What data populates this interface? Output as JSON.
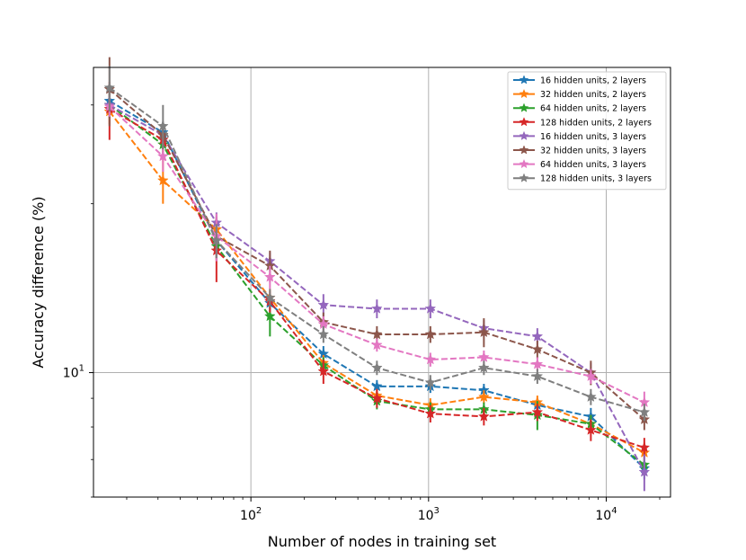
{
  "chart_data": {
    "type": "line",
    "title": "",
    "xlabel": "Number of nodes in training set",
    "ylabel": "Accuracy difference (%)",
    "xscale": "log",
    "yscale": "log",
    "xlim": [
      13,
      23000
    ],
    "ylim": [
      6.0,
      35
    ],
    "grid": true,
    "x_major_ticks": [
      {
        "value": 100,
        "base": "10",
        "exp": "2"
      },
      {
        "value": 1000,
        "base": "10",
        "exp": "3"
      },
      {
        "value": 10000,
        "base": "10",
        "exp": "4"
      }
    ],
    "y_major_ticks": [
      {
        "value": 10,
        "base": "10",
        "exp": "1"
      }
    ],
    "legend_location": "top-right",
    "x": [
      16,
      32,
      64,
      128,
      256,
      512,
      1024,
      2048,
      4096,
      8192,
      16384
    ],
    "series": [
      {
        "name": "16 hidden units, 2 layers",
        "color": "#1f77b4",
        "values": [
          30.5,
          26.8,
          17.2,
          13.3,
          10.8,
          9.45,
          9.45,
          9.3,
          8.75,
          8.35,
          6.75
        ],
        "err": [
          1.2,
          1.2,
          0.9,
          0.5,
          0.35,
          0.25,
          0.25,
          0.25,
          0.25,
          0.3,
          0.3
        ]
      },
      {
        "name": "32 hidden units, 2 layers",
        "color": "#ff7f0e",
        "values": [
          29.2,
          22.0,
          18.0,
          13.6,
          10.4,
          9.1,
          8.75,
          9.05,
          8.85,
          8.1,
          7.2
        ],
        "err": [
          1.5,
          2.0,
          0.9,
          0.5,
          0.35,
          0.25,
          0.25,
          0.25,
          0.25,
          0.3,
          0.3
        ]
      },
      {
        "name": "64 hidden units, 2 layers",
        "color": "#2ca02c",
        "values": [
          30.0,
          25.5,
          16.8,
          12.6,
          10.3,
          8.9,
          8.6,
          8.6,
          8.4,
          8.1,
          6.85
        ],
        "err": [
          1.5,
          1.5,
          0.9,
          1.0,
          0.35,
          0.3,
          0.25,
          0.25,
          0.5,
          0.3,
          0.3
        ]
      },
      {
        "name": "128 hidden units, 2 layers",
        "color": "#d62728",
        "values": [
          29.5,
          26.0,
          16.5,
          13.4,
          10.05,
          9.0,
          8.45,
          8.35,
          8.5,
          7.9,
          7.35
        ],
        "err": [
          3.5,
          1.5,
          2.0,
          0.6,
          0.5,
          0.35,
          0.3,
          0.3,
          0.3,
          0.35,
          0.3
        ]
      },
      {
        "name": "16 hidden units, 3 layers",
        "color": "#9467bd",
        "values": [
          30.0,
          26.5,
          18.5,
          15.8,
          13.2,
          13.0,
          13.0,
          12.0,
          11.6,
          10.0,
          6.65
        ],
        "err": [
          1.2,
          1.2,
          0.8,
          0.6,
          0.6,
          0.5,
          0.5,
          0.4,
          0.4,
          0.4,
          0.5
        ]
      },
      {
        "name": "32 hidden units, 3 layers",
        "color": "#8c564b",
        "values": [
          32.0,
          26.5,
          17.5,
          15.5,
          12.3,
          11.7,
          11.7,
          11.8,
          11.0,
          10.0,
          8.25
        ],
        "err": [
          4.5,
          1.5,
          1.5,
          1.0,
          0.5,
          0.4,
          0.4,
          0.7,
          0.4,
          0.5,
          0.35
        ]
      },
      {
        "name": "64 hidden units, 3 layers",
        "color": "#e377c2",
        "values": [
          29.8,
          24.3,
          17.5,
          14.8,
          12.2,
          11.2,
          10.55,
          10.65,
          10.35,
          9.85,
          8.85
        ],
        "err": [
          1.2,
          1.5,
          1.7,
          0.7,
          0.4,
          0.3,
          0.3,
          0.3,
          0.3,
          0.3,
          0.4
        ]
      },
      {
        "name": "128 hidden units, 3 layers",
        "color": "#7f7f7f",
        "values": [
          32.2,
          27.5,
          17.2,
          13.6,
          11.7,
          10.2,
          9.6,
          10.2,
          9.85,
          9.05,
          8.5
        ],
        "err": [
          3.0,
          2.5,
          1.2,
          0.5,
          0.4,
          0.3,
          0.3,
          0.3,
          0.3,
          0.3,
          0.3
        ]
      }
    ]
  }
}
